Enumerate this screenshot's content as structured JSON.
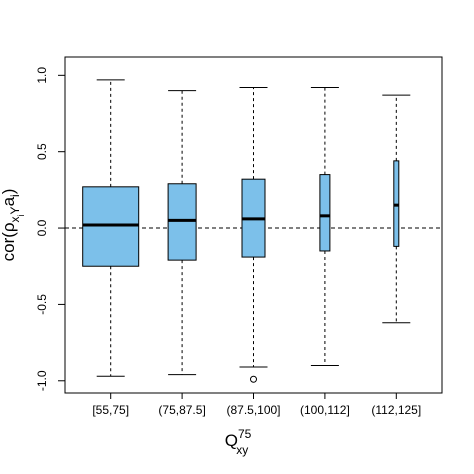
{
  "chart_data": {
    "type": "boxplot",
    "categories": [
      "[55,75]",
      "(75,87.5]",
      "(87.5,100]",
      "(100,112]",
      "(112,125]"
    ],
    "boxes": [
      {
        "whislo": -0.97,
        "q1": -0.25,
        "med": 0.02,
        "q3": 0.27,
        "whishi": 0.97,
        "fliers": []
      },
      {
        "whislo": -0.96,
        "q1": -0.21,
        "med": 0.05,
        "q3": 0.29,
        "whishi": 0.9,
        "fliers": []
      },
      {
        "whislo": -0.91,
        "q1": -0.19,
        "med": 0.06,
        "q3": 0.32,
        "whishi": 0.92,
        "fliers": [
          -0.99
        ]
      },
      {
        "whislo": -0.9,
        "q1": -0.15,
        "med": 0.08,
        "q3": 0.35,
        "whishi": 0.92,
        "fliers": []
      },
      {
        "whislo": -0.62,
        "q1": -0.12,
        "med": 0.15,
        "q3": 0.44,
        "whishi": 0.87,
        "fliers": []
      }
    ],
    "color": "#7cc0ea",
    "hline": 0,
    "ylim": [
      -1.08,
      1.12
    ],
    "yticks": [
      {
        "value": -1,
        "label": "-1.0"
      },
      -0.5,
      {
        "value": 0,
        "label": "0.0"
      },
      0.5,
      {
        "value": 1,
        "label": "1.0"
      }
    ],
    "y_label": [
      {
        "text": "cor(ρ"
      },
      {
        "text": "x",
        "sub": true
      },
      {
        "text": "i",
        "subsub": true
      },
      {
        "text": "Y",
        "sub": true
      },
      {
        "text": "a"
      },
      {
        "text": "i",
        "sub": true
      },
      {
        "text": ")"
      }
    ],
    "x_label": {
      "base": "Q",
      "sup": "75",
      "sub": "xy"
    }
  }
}
